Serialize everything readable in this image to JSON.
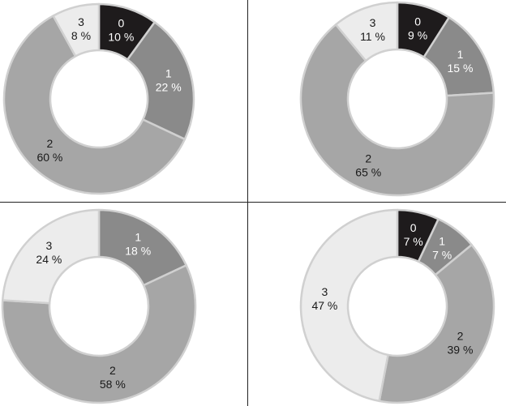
{
  "chart_data": [
    {
      "type": "pie",
      "donut": true,
      "categories": [
        "0",
        "1",
        "2",
        "3"
      ],
      "values": [
        10,
        22,
        60,
        8
      ],
      "labels": [
        "10 %",
        "22 %",
        "60 %",
        "8 %"
      ],
      "colors": [
        "#1e1b1c",
        "#8a8a8a",
        "#a6a6a6",
        "#ececec"
      ],
      "label_colors": [
        "#ffffff",
        "#ffffff",
        "#1a1a1a",
        "#1a1a1a"
      ]
    },
    {
      "type": "pie",
      "donut": true,
      "categories": [
        "0",
        "1",
        "2",
        "3"
      ],
      "values": [
        9,
        15,
        65,
        11
      ],
      "labels": [
        "9 %",
        "15 %",
        "65 %",
        "11 %"
      ],
      "colors": [
        "#1e1b1c",
        "#8a8a8a",
        "#a6a6a6",
        "#ececec"
      ],
      "label_colors": [
        "#ffffff",
        "#ffffff",
        "#1a1a1a",
        "#1a1a1a"
      ]
    },
    {
      "type": "pie",
      "donut": true,
      "categories": [
        "1",
        "2",
        "3"
      ],
      "values": [
        18,
        58,
        24
      ],
      "labels": [
        "18 %",
        "58 %",
        "24 %"
      ],
      "colors": [
        "#8a8a8a",
        "#a6a6a6",
        "#ececec"
      ],
      "label_colors": [
        "#ffffff",
        "#1a1a1a",
        "#1a1a1a"
      ]
    },
    {
      "type": "pie",
      "donut": true,
      "categories": [
        "0",
        "1",
        "2",
        "3"
      ],
      "values": [
        7,
        7,
        39,
        47
      ],
      "labels": [
        "7 %",
        "7 %",
        "39 %",
        "47 %"
      ],
      "colors": [
        "#1e1b1c",
        "#8a8a8a",
        "#a6a6a6",
        "#ececec"
      ],
      "label_colors": [
        "#ffffff",
        "#ffffff",
        "#1a1a1a",
        "#1a1a1a"
      ]
    }
  ]
}
